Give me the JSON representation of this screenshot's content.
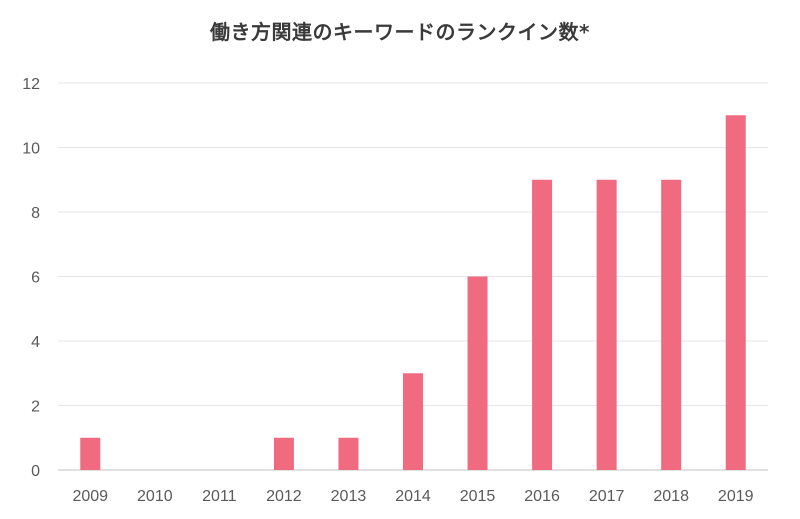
{
  "chart_data": {
    "type": "bar",
    "title": "働き方関連のキーワードのランクイン数*",
    "xlabel": "",
    "ylabel": "",
    "categories": [
      "2009",
      "2010",
      "2011",
      "2012",
      "2013",
      "2014",
      "2015",
      "2016",
      "2017",
      "2018",
      "2019"
    ],
    "values": [
      1,
      0,
      0,
      1,
      1,
      3,
      6,
      9,
      9,
      9,
      11
    ],
    "ylim": [
      0,
      12
    ],
    "yticks": [
      0,
      2,
      4,
      6,
      8,
      10,
      12
    ],
    "grid": true,
    "legend": "none",
    "bar_color": "#f06b80",
    "grid_color": "#e6e6e6",
    "axis_color": "#cfcfcf"
  }
}
